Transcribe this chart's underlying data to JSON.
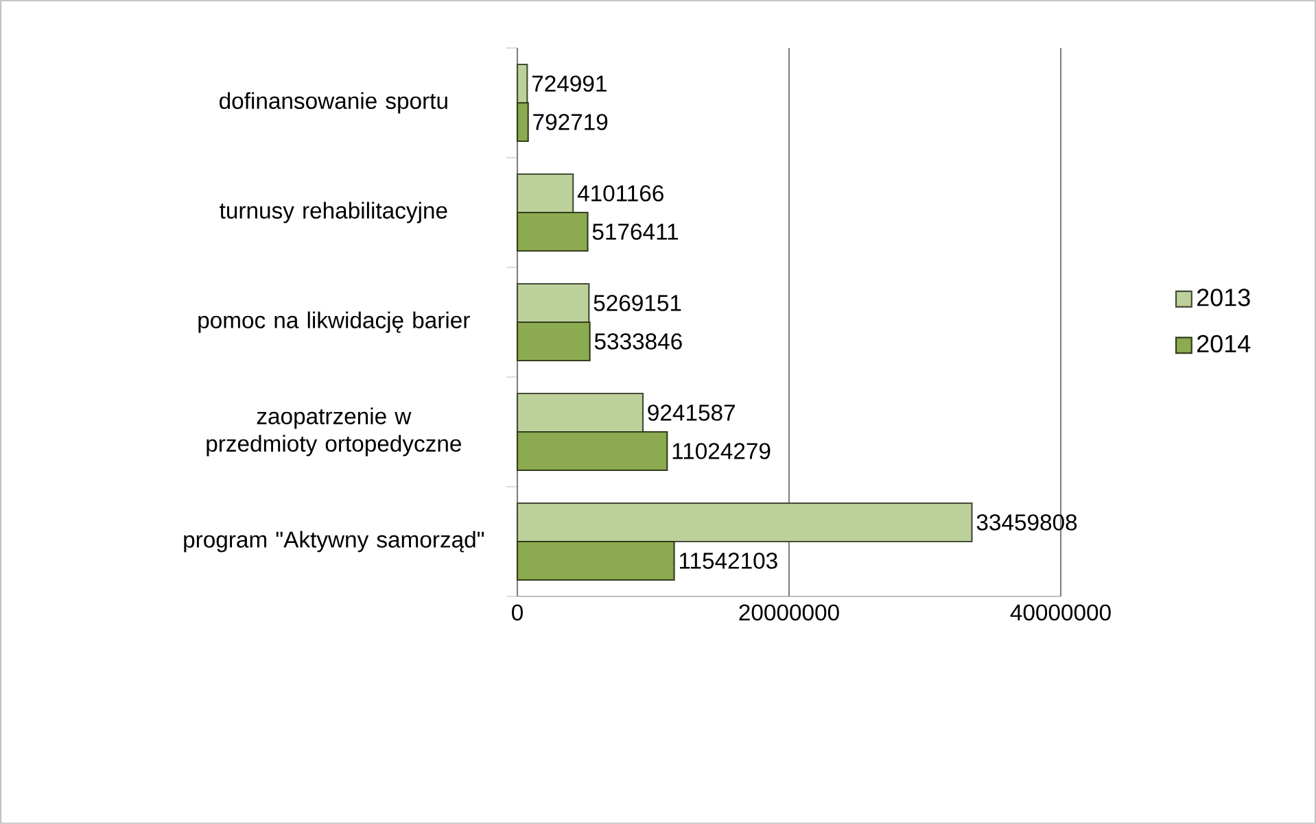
{
  "chart_data": {
    "type": "bar",
    "orientation": "horizontal",
    "categories": [
      "dofinansowanie sportu",
      "turnusy rehabilitacyjne",
      "pomoc na likwidację barier",
      "zaopatrzenie w przedmioty ortopedyczne",
      "program \"Aktywny samorząd\""
    ],
    "series": [
      {
        "name": "2013",
        "color": "#bcd19a",
        "values": [
          724991,
          4101166,
          5269151,
          9241587,
          33459808
        ]
      },
      {
        "name": "2014",
        "color": "#8caa4f",
        "values": [
          792719,
          5176411,
          5333846,
          11024279,
          11542103
        ]
      }
    ],
    "xlim": [
      0,
      40000000
    ],
    "xticks": [
      0,
      20000000,
      40000000
    ],
    "grid": "x",
    "legend": "right",
    "data_labels": true
  }
}
